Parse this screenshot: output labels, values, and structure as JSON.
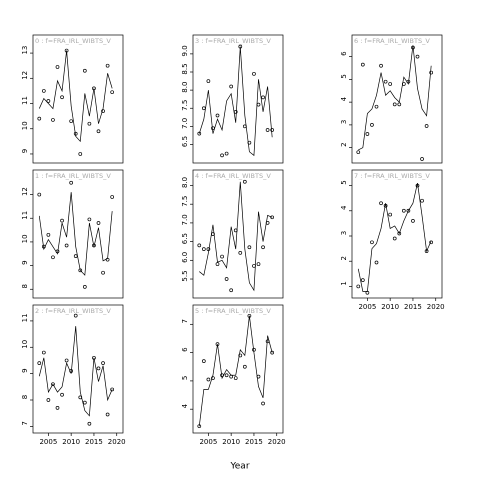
{
  "xlabel": "Year",
  "chart_data": [
    {
      "type": "line",
      "title": "0 : f=FRA_IRL_WIBTS_V",
      "x": [
        2003,
        2004,
        2005,
        2006,
        2007,
        2008,
        2009,
        2010,
        2011,
        2012,
        2013,
        2014,
        2015,
        2016,
        2017,
        2018,
        2019
      ],
      "xlim": [
        2002.5,
        2020.5
      ],
      "ylim": [
        8.8,
        13.4
      ],
      "yticks": [
        9,
        10,
        11,
        12,
        13
      ],
      "series": [
        {
          "color": "#000000",
          "values": [
            10.8,
            11.2,
            11.0,
            10.8,
            11.9,
            11.5,
            13.1,
            10.9,
            9.7,
            9.5,
            11.4,
            10.5,
            11.6,
            10.2,
            10.8,
            12.2,
            11.6
          ]
        },
        {
          "color": "#000000",
          "marker": "circle",
          "values": [
            10.4,
            11.5,
            11.1,
            10.35,
            12.45,
            11.25,
            13.1,
            10.3,
            9.8,
            9.0,
            12.3,
            10.2,
            11.6,
            9.9,
            10.7,
            12.5,
            11.45
          ]
        }
      ]
    },
    {
      "type": "line",
      "title": "1 : f=FRA_IRL_WIBTS_V",
      "x": [
        2003,
        2004,
        2005,
        2006,
        2007,
        2008,
        2009,
        2010,
        2011,
        2012,
        2013,
        2014,
        2015,
        2016,
        2017,
        2018,
        2019
      ],
      "xlim": [
        2002.5,
        2020.5
      ],
      "ylim": [
        7.8,
        12.7
      ],
      "yticks": [
        8,
        9,
        10,
        11,
        12
      ],
      "series": [
        {
          "color": "#000000",
          "values": [
            11.1,
            9.7,
            10.1,
            9.8,
            9.5,
            10.8,
            10.2,
            12.1,
            9.8,
            8.8,
            8.6,
            10.8,
            9.8,
            10.6,
            9.2,
            9.3,
            11.3
          ]
        },
        {
          "color": "#000000",
          "marker": "circle",
          "values": [
            12.0,
            9.8,
            10.3,
            9.35,
            9.6,
            10.9,
            9.85,
            12.5,
            9.4,
            8.8,
            8.1,
            10.95,
            9.85,
            10.8,
            8.7,
            9.25,
            11.9
          ]
        }
      ]
    },
    {
      "type": "line",
      "title": "2 : f=FRA_IRL_WIBTS_V",
      "x": [
        2003,
        2004,
        2005,
        2006,
        2007,
        2008,
        2009,
        2010,
        2011,
        2012,
        2013,
        2014,
        2015,
        2016,
        2017,
        2018,
        2019
      ],
      "xlim": [
        2002.5,
        2020.5
      ],
      "xticks": [
        2005,
        2010,
        2015,
        2020
      ],
      "ylim": [
        6.9,
        11.3
      ],
      "yticks": [
        7,
        8,
        9,
        10,
        11
      ],
      "series": [
        {
          "color": "#000000",
          "values": [
            8.9,
            9.6,
            8.3,
            8.6,
            8.3,
            8.5,
            9.4,
            9.0,
            10.8,
            8.3,
            7.6,
            7.4,
            9.6,
            8.7,
            9.3,
            8.0,
            8.4
          ]
        },
        {
          "color": "#000000",
          "marker": "circle",
          "values": [
            9.4,
            9.8,
            8.0,
            8.6,
            7.7,
            8.2,
            9.5,
            9.1,
            11.2,
            8.1,
            7.9,
            7.1,
            9.6,
            9.2,
            9.4,
            7.45,
            8.4
          ]
        }
      ]
    },
    {
      "type": "line",
      "title": "3 : f=FRA_IRL_WIBTS_V",
      "x": [
        2003,
        2004,
        2005,
        2006,
        2007,
        2008,
        2009,
        2010,
        2011,
        2012,
        2013,
        2014,
        2015,
        2016,
        2017,
        2018,
        2019
      ],
      "xlim": [
        2002.5,
        2020.5
      ],
      "ylim": [
        6.1,
        9.3
      ],
      "yticks": [
        {
          "value": 6.5,
          "label": "6.5"
        },
        {
          "value": 7,
          "label": "7.0"
        },
        {
          "value": 7.5,
          "label": "7.5"
        },
        {
          "value": 8,
          "label": "8.0"
        },
        {
          "value": 8.5,
          "label": "8.5"
        },
        {
          "value": 9,
          "label": "9.0"
        }
      ],
      "series": [
        {
          "color": "#000000",
          "values": [
            6.8,
            7.2,
            8.0,
            6.8,
            7.2,
            6.9,
            7.7,
            7.9,
            7.1,
            9.2,
            7.3,
            6.3,
            6.2,
            8.3,
            7.4,
            8.1,
            6.7
          ]
        },
        {
          "color": "#000000",
          "marker": "circle",
          "values": [
            6.8,
            7.5,
            8.25,
            6.95,
            7.3,
            6.2,
            6.25,
            8.1,
            7.4,
            9.2,
            7.0,
            6.55,
            8.45,
            7.6,
            7.8,
            6.9,
            6.9
          ]
        }
      ]
    },
    {
      "type": "line",
      "title": "4 : f=FRA_IRL_WIBTS_V",
      "x": [
        2003,
        2004,
        2005,
        2006,
        2007,
        2008,
        2009,
        2010,
        2011,
        2012,
        2013,
        2014,
        2015,
        2016,
        2017,
        2018,
        2019
      ],
      "xlim": [
        2002.5,
        2020.5
      ],
      "ylim": [
        5.1,
        8.2
      ],
      "yticks": [
        {
          "value": 5.5,
          "label": "5.5"
        },
        {
          "value": 6,
          "label": "6.0"
        },
        {
          "value": 6.5,
          "label": "6.5"
        },
        {
          "value": 7,
          "label": "7.0"
        },
        {
          "value": 7.5,
          "label": "7.5"
        },
        {
          "value": 8,
          "label": "8.0"
        }
      ],
      "series": [
        {
          "color": "#000000",
          "values": [
            5.7,
            5.6,
            6.2,
            6.95,
            5.95,
            6.0,
            5.8,
            6.9,
            6.3,
            8.1,
            6.3,
            5.4,
            5.2,
            7.3,
            6.5,
            7.2,
            7.15
          ]
        },
        {
          "color": "#000000",
          "marker": "circle",
          "values": [
            6.4,
            6.3,
            6.3,
            6.7,
            5.9,
            6.1,
            5.5,
            5.2,
            6.8,
            6.2,
            8.1,
            6.35,
            5.85,
            5.9,
            6.35,
            7.0,
            7.15
          ]
        }
      ]
    },
    {
      "type": "line",
      "title": "5 : f=FRA_IRL_WIBTS_V",
      "x": [
        2003,
        2004,
        2005,
        2006,
        2007,
        2008,
        2009,
        2010,
        2011,
        2012,
        2013,
        2014,
        2015,
        2016,
        2017,
        2018,
        2019
      ],
      "xlim": [
        2002.5,
        2020.5
      ],
      "xticks": [
        2005,
        2010,
        2015,
        2020
      ],
      "ylim": [
        3.3,
        7.4
      ],
      "yticks": [
        4,
        5,
        6,
        7
      ],
      "series": [
        {
          "color": "#000000",
          "values": [
            3.4,
            4.7,
            4.7,
            5.2,
            6.3,
            5.1,
            5.4,
            5.2,
            5.2,
            6.1,
            5.9,
            7.3,
            6.0,
            4.8,
            4.4,
            6.6,
            6.0
          ]
        },
        {
          "color": "#000000",
          "marker": "circle",
          "values": [
            3.4,
            5.7,
            5.05,
            5.1,
            6.3,
            5.2,
            5.2,
            5.15,
            5.1,
            5.9,
            5.5,
            7.3,
            6.1,
            5.15,
            4.2,
            6.4,
            6.0
          ]
        }
      ]
    },
    {
      "type": "line",
      "title": "6 : f=FRA_IRL_WIBTS_V",
      "x": [
        2003,
        2004,
        2005,
        2006,
        2007,
        2008,
        2009,
        2010,
        2011,
        2012,
        2013,
        2014,
        2015,
        2016,
        2017,
        2018,
        2019
      ],
      "xlim": [
        2002.5,
        2020.5
      ],
      "ylim": [
        1.5,
        6.6
      ],
      "yticks": [
        2,
        3,
        4,
        5,
        6
      ],
      "series": [
        {
          "color": "#000000",
          "values": [
            1.9,
            2.0,
            3.5,
            3.7,
            4.3,
            5.3,
            4.3,
            4.5,
            4.2,
            4.0,
            5.1,
            4.8,
            6.5,
            4.6,
            3.7,
            3.4,
            5.6
          ]
        },
        {
          "color": "#000000",
          "marker": "circle",
          "values": [
            1.8,
            5.65,
            2.6,
            3.0,
            3.8,
            5.6,
            4.9,
            4.8,
            3.9,
            3.9,
            4.8,
            4.9,
            6.4,
            6.0,
            1.5,
            2.95,
            5.3
          ]
        }
      ]
    },
    {
      "type": "line",
      "title": "7 : f=FRA_IRL_WIBTS_V",
      "x": [
        2003,
        2004,
        2005,
        2006,
        2007,
        2008,
        2009,
        2010,
        2011,
        2012,
        2013,
        2014,
        2015,
        2016,
        2017,
        2018,
        2019
      ],
      "xlim": [
        2002.5,
        2020.5
      ],
      "xticks": [
        2005,
        2010,
        2015,
        2020
      ],
      "ylim": [
        0.7,
        5.3
      ],
      "yticks": [
        1,
        2,
        3,
        4,
        5
      ],
      "series": [
        {
          "color": "#000000",
          "values": [
            1.7,
            0.8,
            0.8,
            2.5,
            2.7,
            3.3,
            4.3,
            3.3,
            3.4,
            3.1,
            3.6,
            4.0,
            4.3,
            5.1,
            3.8,
            2.4,
            2.8
          ]
        },
        {
          "color": "#000000",
          "marker": "circle",
          "values": [
            1.0,
            1.25,
            0.75,
            2.75,
            1.95,
            4.3,
            4.2,
            3.85,
            2.9,
            3.1,
            4.0,
            4.0,
            3.6,
            5.0,
            4.4,
            2.4,
            2.75
          ]
        }
      ]
    }
  ]
}
